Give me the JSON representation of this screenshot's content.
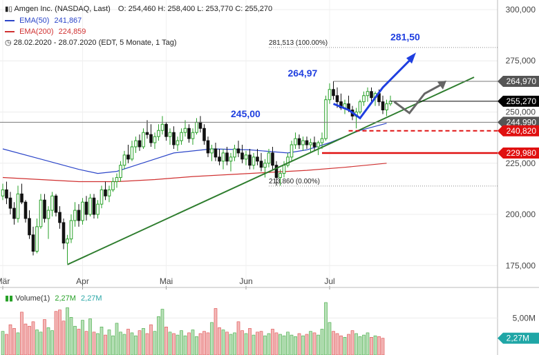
{
  "header": {
    "instrument": "Amgen Inc. (NASDAQ, Last)",
    "ohlc": "O: 254,460   H: 258,400   L: 253,770   C: 255,270",
    "ema50_label": "EMA(50)",
    "ema50_value": "241,867",
    "ema200_label": "EMA(200)",
    "ema200_value": "224,859",
    "period": "28.02.2020 - 28.07.2020   (EDT, 5 Monate, 1 Tag)"
  },
  "volume_legend": {
    "label": "Volume(1)",
    "value1": "2,27M",
    "value2": "2,27M"
  },
  "colors": {
    "up": "#27a127",
    "down": "#111111",
    "ema50": "#2a44c8",
    "ema200": "#d03030",
    "trendline": "#2e7d2e",
    "annotation_blue": "#1f3fe0",
    "projection_gray": "#666666",
    "support_red": "#e01010",
    "axis_label_bg": "#555555"
  },
  "chart_data": {
    "type": "candlestick",
    "y_axis": {
      "min": 165000,
      "max": 302000,
      "ticks": [
        175000,
        200000,
        225000,
        250000,
        275000,
        300000
      ],
      "tick_labels": [
        "175,000",
        "200,000",
        "225,000",
        "250,000",
        "275,000",
        "300,000"
      ]
    },
    "x_axis": {
      "tick_labels": [
        "Mär",
        "Apr",
        "Mai",
        "Jun",
        "Jul"
      ],
      "tick_days": [
        0,
        21,
        43,
        64,
        86
      ]
    },
    "ohlc": [
      [
        209000,
        215000,
        207000,
        212000
      ],
      [
        212000,
        216000,
        205000,
        208000
      ],
      [
        208000,
        211000,
        200000,
        203000
      ],
      [
        203000,
        206000,
        195000,
        198000
      ],
      [
        198000,
        214000,
        196000,
        210000
      ],
      [
        210000,
        215000,
        205000,
        206000
      ],
      [
        206000,
        207000,
        196000,
        198000
      ],
      [
        198000,
        202000,
        188000,
        190000
      ],
      [
        190000,
        194000,
        180000,
        182000
      ],
      [
        182000,
        198000,
        181000,
        194000
      ],
      [
        194000,
        210000,
        193000,
        207000
      ],
      [
        207000,
        210000,
        196000,
        198000
      ],
      [
        198000,
        204000,
        188000,
        202000
      ],
      [
        202000,
        211000,
        199000,
        209000
      ],
      [
        209000,
        210000,
        199000,
        201000
      ],
      [
        201000,
        204000,
        193000,
        196000
      ],
      [
        196000,
        198000,
        183000,
        186000
      ],
      [
        186000,
        190000,
        176000,
        188000
      ],
      [
        188000,
        200000,
        186000,
        197000
      ],
      [
        197000,
        206000,
        194000,
        202000
      ],
      [
        202000,
        205000,
        194000,
        197000
      ],
      [
        197000,
        208000,
        195000,
        206000
      ],
      [
        206000,
        209000,
        197000,
        200000
      ],
      [
        200000,
        210000,
        199000,
        208000
      ],
      [
        208000,
        210000,
        198000,
        200000
      ],
      [
        200000,
        207000,
        198000,
        205000
      ],
      [
        205000,
        214000,
        203000,
        212000
      ],
      [
        212000,
        216000,
        207000,
        209000
      ],
      [
        209000,
        214000,
        206000,
        212000
      ],
      [
        212000,
        218000,
        211000,
        216000
      ],
      [
        216000,
        220000,
        213000,
        218000
      ],
      [
        218000,
        226000,
        216000,
        224000
      ],
      [
        224000,
        231000,
        222000,
        229000
      ],
      [
        229000,
        234000,
        225000,
        227000
      ],
      [
        227000,
        236000,
        226000,
        233000
      ],
      [
        233000,
        238000,
        230000,
        236000
      ],
      [
        236000,
        239000,
        231000,
        233000
      ],
      [
        233000,
        242000,
        232000,
        240000
      ],
      [
        240000,
        246000,
        237000,
        239000
      ],
      [
        239000,
        244000,
        233000,
        235000
      ],
      [
        235000,
        240000,
        232000,
        238000
      ],
      [
        238000,
        244000,
        236000,
        241000
      ],
      [
        241000,
        248000,
        239000,
        244000
      ],
      [
        244000,
        245000,
        236000,
        238000
      ],
      [
        238000,
        242000,
        234000,
        240000
      ],
      [
        240000,
        243000,
        232000,
        234000
      ],
      [
        234000,
        238000,
        231000,
        236000
      ],
      [
        236000,
        242000,
        234000,
        240000
      ],
      [
        240000,
        246000,
        238000,
        242000
      ],
      [
        242000,
        244000,
        235000,
        237000
      ],
      [
        237000,
        242000,
        234000,
        240000
      ],
      [
        240000,
        247000,
        239000,
        245000
      ],
      [
        245000,
        248000,
        240000,
        242000
      ],
      [
        242000,
        244000,
        234000,
        236000
      ],
      [
        236000,
        238000,
        228000,
        230000
      ],
      [
        230000,
        234000,
        226000,
        232000
      ],
      [
        232000,
        235000,
        226000,
        228000
      ],
      [
        228000,
        232000,
        224000,
        226000
      ],
      [
        226000,
        232000,
        222000,
        230000
      ],
      [
        230000,
        233000,
        224000,
        226000
      ],
      [
        226000,
        230000,
        221000,
        228000
      ],
      [
        228000,
        234000,
        226000,
        232000
      ],
      [
        232000,
        236000,
        228000,
        230000
      ],
      [
        230000,
        234000,
        225000,
        227000
      ],
      [
        227000,
        231000,
        224000,
        229000
      ],
      [
        229000,
        232000,
        222000,
        224000
      ],
      [
        224000,
        230000,
        222000,
        228000
      ],
      [
        228000,
        232000,
        224000,
        226000
      ],
      [
        226000,
        230000,
        221000,
        223000
      ],
      [
        223000,
        227000,
        218000,
        225000
      ],
      [
        225000,
        232000,
        223000,
        230000
      ],
      [
        230000,
        233000,
        222000,
        224000
      ],
      [
        224000,
        226000,
        214000,
        218000
      ],
      [
        218000,
        222000,
        214000,
        220000
      ],
      [
        220000,
        226000,
        218000,
        224000
      ],
      [
        224000,
        230000,
        223000,
        228000
      ],
      [
        228000,
        236000,
        226000,
        234000
      ],
      [
        234000,
        240000,
        232000,
        237000
      ],
      [
        237000,
        239000,
        232000,
        234000
      ],
      [
        234000,
        238000,
        231000,
        236000
      ],
      [
        236000,
        238000,
        232000,
        234000
      ],
      [
        234000,
        237000,
        230000,
        235000
      ],
      [
        235000,
        238000,
        231000,
        233000
      ],
      [
        233000,
        236000,
        229000,
        235000
      ],
      [
        235000,
        240000,
        232000,
        237000
      ],
      [
        237000,
        258000,
        236000,
        256000
      ],
      [
        256000,
        264000,
        254000,
        261000
      ],
      [
        261000,
        265000,
        256000,
        258000
      ],
      [
        258000,
        262000,
        252000,
        255000
      ],
      [
        255000,
        259000,
        251000,
        252000
      ],
      [
        252000,
        256000,
        249000,
        254000
      ],
      [
        254000,
        258000,
        250000,
        251000
      ],
      [
        251000,
        253000,
        246000,
        248000
      ],
      [
        248000,
        252000,
        242000,
        250000
      ],
      [
        250000,
        256000,
        249000,
        255000
      ],
      [
        255000,
        260000,
        253000,
        258000
      ],
      [
        258000,
        262000,
        255000,
        260000
      ],
      [
        260000,
        262000,
        255000,
        257000
      ],
      [
        257000,
        260000,
        253000,
        259000
      ],
      [
        259000,
        261000,
        253000,
        255000
      ],
      [
        255000,
        258000,
        249000,
        251000
      ],
      [
        251000,
        256000,
        248000,
        254000
      ],
      [
        254000,
        258000,
        253000,
        255270
      ]
    ],
    "volume": {
      "max": 7000000,
      "tick": 5000000,
      "tick_label": "5,00M",
      "current_label": "2,27M",
      "values": [
        3.2,
        2.8,
        4.1,
        3.6,
        3.0,
        5.8,
        4.2,
        3.9,
        4.5,
        3.4,
        3.1,
        4.8,
        3.7,
        3.3,
        5.9,
        6.1,
        4.6,
        6.4,
        5.1,
        3.9,
        3.5,
        4.7,
        3.2,
        4.9,
        3.1,
        2.9,
        3.8,
        2.7,
        3.4,
        2.6,
        4.3,
        3.1,
        2.8,
        3.5,
        3.0,
        2.6,
        3.3,
        3.6,
        2.9,
        4.1,
        3.2,
        5.2,
        6.2,
        3.8,
        3.1,
        2.9,
        2.7,
        3.3,
        2.6,
        3.0,
        3.4,
        2.5,
        2.9,
        3.2,
        3.0,
        4.4,
        6.3,
        3.7,
        3.4,
        3.1,
        2.8,
        3.0,
        4.5,
        3.3,
        2.9,
        3.6,
        2.7,
        3.1,
        3.2,
        2.6,
        2.9,
        3.5,
        3.0,
        2.8,
        2.6,
        3.1,
        2.7,
        2.5,
        2.9,
        2.6,
        2.8,
        3.2,
        3.0,
        2.7,
        3.5,
        7.1,
        4.4,
        3.2,
        2.9,
        2.6,
        2.4,
        2.8,
        3.3,
        2.9,
        2.5,
        2.7,
        3.0,
        2.4,
        2.6,
        2.5,
        2.27
      ]
    },
    "ema50": [
      [
        0,
        232000
      ],
      [
        10,
        227000
      ],
      [
        20,
        222000
      ],
      [
        25,
        220000
      ],
      [
        30,
        221000
      ],
      [
        35,
        224000
      ],
      [
        40,
        227000
      ],
      [
        45,
        230000
      ],
      [
        55,
        232000
      ],
      [
        65,
        231500
      ],
      [
        75,
        230000
      ],
      [
        80,
        231500
      ],
      [
        86,
        235000
      ],
      [
        94,
        241000
      ],
      [
        101,
        244500
      ]
    ],
    "ema200": [
      [
        0,
        218000
      ],
      [
        10,
        217000
      ],
      [
        20,
        216000
      ],
      [
        30,
        216000
      ],
      [
        40,
        217000
      ],
      [
        50,
        218500
      ],
      [
        60,
        219500
      ],
      [
        70,
        220500
      ],
      [
        80,
        221500
      ],
      [
        90,
        223000
      ],
      [
        101,
        225000
      ]
    ],
    "trendline": [
      [
        17,
        175500
      ],
      [
        124,
        267000
      ]
    ],
    "annotations": {
      "peak_label": "264,97",
      "resistance_label": "245,00",
      "target_label": "281,50",
      "fib_top_label": "281,513 (100.00%)",
      "fib_bottom_label": "213,860 (0.00%)"
    },
    "levels": [
      {
        "value": 264970,
        "label": "264,970",
        "style": "gray"
      },
      {
        "value": 255270,
        "label": "255,270",
        "style": "current"
      },
      {
        "value": 244990,
        "label": "244,990",
        "style": "gray"
      },
      {
        "value": 240820,
        "label": "240,820",
        "style": "red-dashed"
      },
      {
        "value": 229980,
        "label": "229,980",
        "style": "red-solid"
      }
    ]
  }
}
